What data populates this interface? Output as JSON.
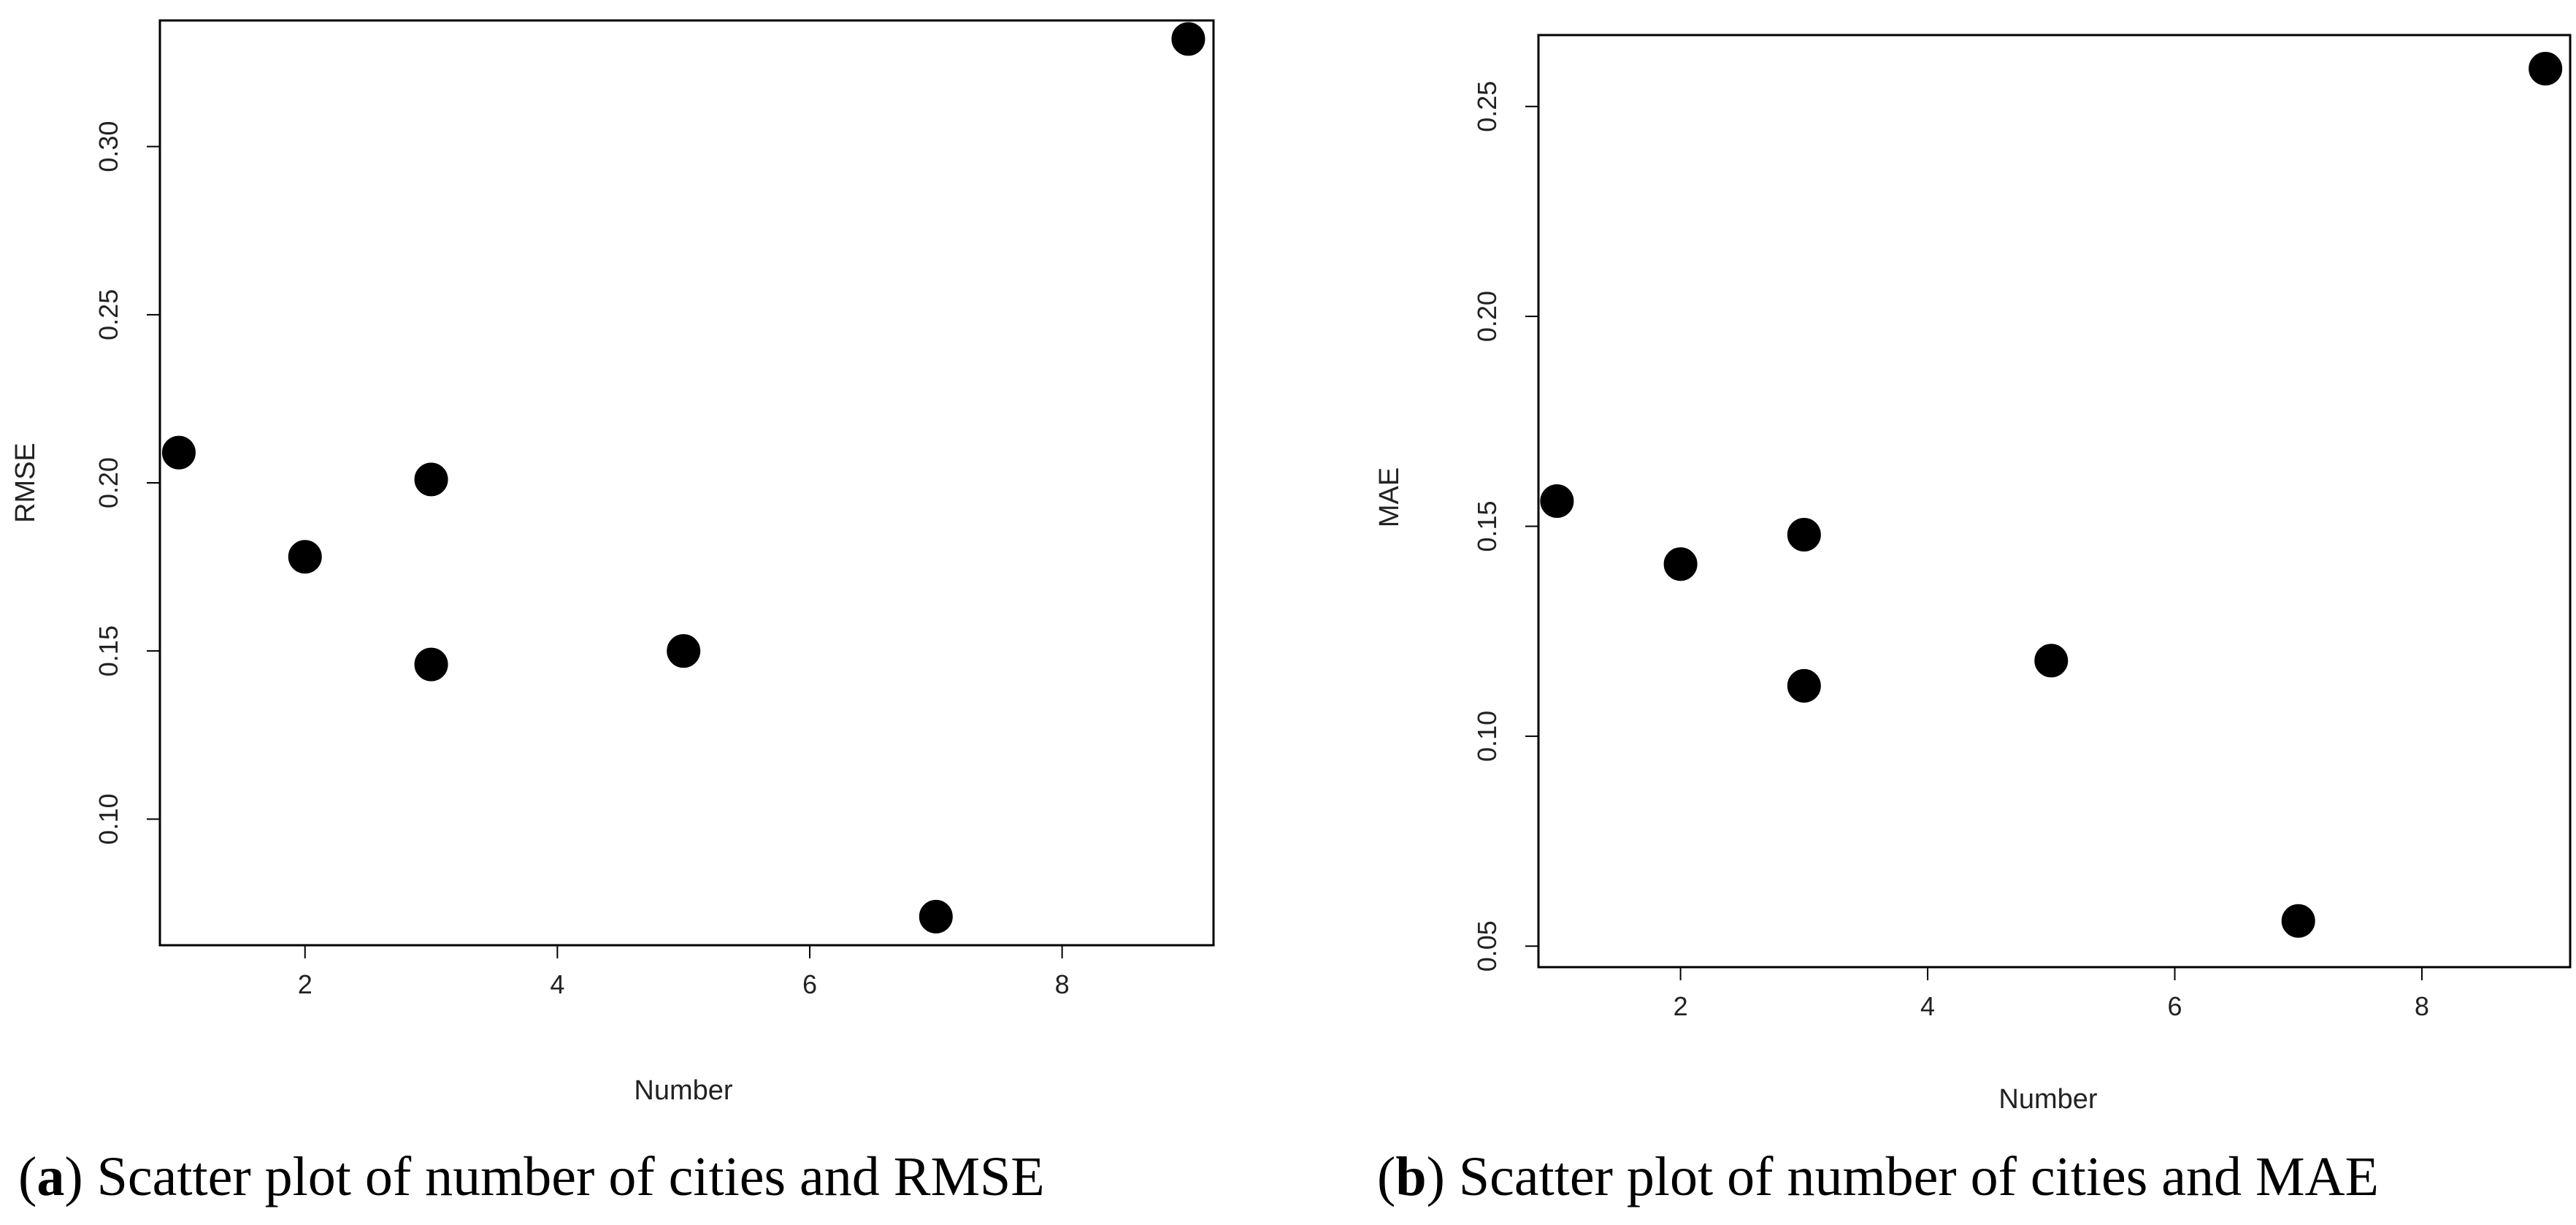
{
  "chart_data": [
    {
      "type": "scatter",
      "id": "a",
      "caption_letter": "a",
      "caption_text": "Scatter plot of number of cities and RMSE",
      "xlabel": "Number",
      "ylabel": "RMSE",
      "xlim": [
        0.85,
        9.2
      ],
      "ylim": [
        0.0625,
        0.3375
      ],
      "x_ticks": [
        2,
        4,
        6,
        8
      ],
      "y_ticks": [
        0.1,
        0.15,
        0.2,
        0.25,
        0.3
      ],
      "y_tick_labels": [
        "0.10",
        "0.15",
        "0.20",
        "0.25",
        "0.30"
      ],
      "points": [
        {
          "x": 1,
          "y": 0.209
        },
        {
          "x": 2,
          "y": 0.178
        },
        {
          "x": 3,
          "y": 0.201
        },
        {
          "x": 3,
          "y": 0.146
        },
        {
          "x": 5,
          "y": 0.15
        },
        {
          "x": 7,
          "y": 0.071
        },
        {
          "x": 9,
          "y": 0.332
        }
      ],
      "grid": false,
      "marker_color": "#000000"
    },
    {
      "type": "scatter",
      "id": "b",
      "caption_letter": "b",
      "caption_text": "Scatter plot of number of cities and MAE",
      "xlabel": "Number",
      "ylabel": "MAE",
      "xlim": [
        0.85,
        9.2
      ],
      "ylim": [
        0.045,
        0.267
      ],
      "x_ticks": [
        2,
        4,
        6,
        8
      ],
      "y_ticks": [
        0.05,
        0.1,
        0.15,
        0.2,
        0.25
      ],
      "y_tick_labels": [
        "0.05",
        "0.10",
        "0.15",
        "0.20",
        "0.25"
      ],
      "points": [
        {
          "x": 1,
          "y": 0.156
        },
        {
          "x": 2,
          "y": 0.141
        },
        {
          "x": 3,
          "y": 0.148
        },
        {
          "x": 3,
          "y": 0.112
        },
        {
          "x": 5,
          "y": 0.118
        },
        {
          "x": 7,
          "y": 0.056
        },
        {
          "x": 9,
          "y": 0.259
        }
      ],
      "grid": false,
      "marker_color": "#000000"
    }
  ]
}
